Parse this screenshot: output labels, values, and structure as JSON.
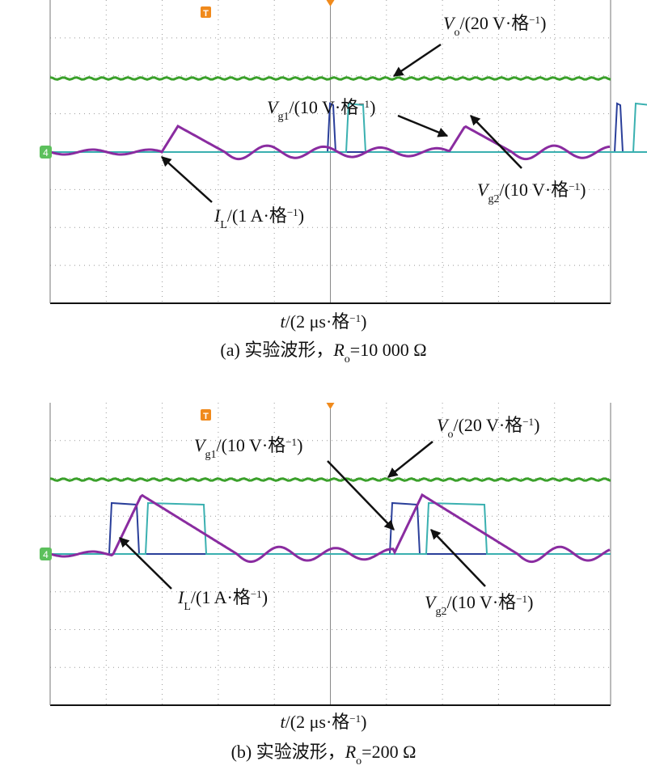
{
  "trigger_marker": "T",
  "channel_marker": "4",
  "panels": [
    {
      "annotations": [
        {
          "var": "V",
          "sub": "o",
          "unit": "/(20 V·格",
          "sup": "−1",
          "close": ")"
        },
        {
          "var": "V",
          "sub": "g1",
          "unit": "/(10 V·格",
          "sup": "−1",
          "close": ")"
        },
        {
          "var": "V",
          "sub": "g2",
          "unit": "/(10 V·格",
          "sup": "−1",
          "close": ")"
        },
        {
          "var": "I",
          "sub": "L",
          "unit": "/(1 A·格",
          "sup": "−1",
          "close": ")"
        }
      ],
      "x_label": {
        "var": "t",
        "unit": "/(2 μs·格",
        "sup": "−1",
        "close": ")"
      },
      "caption": {
        "prefix": "(a) 实验波形，",
        "var": "R",
        "sub": "o",
        "value": "=10 000 Ω"
      }
    },
    {
      "annotations": [
        {
          "var": "V",
          "sub": "o",
          "unit": "/(20 V·格",
          "sup": "−1",
          "close": ")"
        },
        {
          "var": "V",
          "sub": "g1",
          "unit": "/(10 V·格",
          "sup": "−1",
          "close": ")"
        },
        {
          "var": "V",
          "sub": "g2",
          "unit": "/(10 V·格",
          "sup": "−1",
          "close": ")"
        },
        {
          "var": "I",
          "sub": "L",
          "unit": "/(1 A·格",
          "sup": "−1",
          "close": ")"
        }
      ],
      "x_label": {
        "var": "t",
        "unit": "/(2 μs·格",
        "sup": "−1",
        "close": ")"
      },
      "caption": {
        "prefix": "(b) 实验波形，",
        "var": "R",
        "sub": "o",
        "value": "=200 Ω"
      }
    }
  ]
}
